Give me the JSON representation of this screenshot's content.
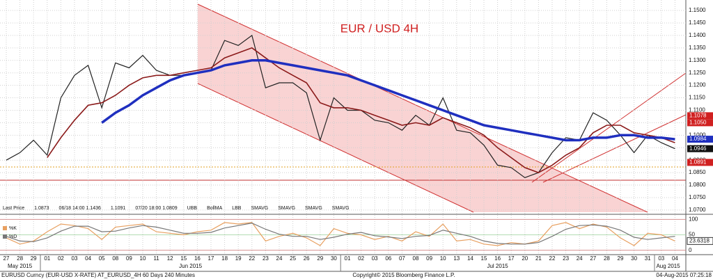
{
  "chart_data": {
    "type": "line",
    "title": "EUR / USD 4H",
    "categories": [
      "27",
      "28",
      "29",
      "01",
      "02",
      "03",
      "04",
      "05",
      "08",
      "09",
      "10",
      "11",
      "12",
      "15",
      "16",
      "17",
      "18",
      "19",
      "22",
      "23",
      "24",
      "25",
      "26",
      "29",
      "30",
      "01",
      "02",
      "03",
      "06",
      "07",
      "08",
      "09",
      "10",
      "13",
      "14",
      "15",
      "16",
      "17",
      "20",
      "21",
      "22",
      "23",
      "24",
      "27",
      "28",
      "29",
      "30",
      "31",
      "03",
      "04"
    ],
    "month_labels": [
      "May 2015",
      "Jun 2015",
      "Jul 2015",
      "Aug 2015"
    ],
    "series": [
      {
        "name": "Last Price",
        "color": "#222222",
        "width": 1.2,
        "values": [
          1.09,
          1.093,
          1.098,
          1.092,
          1.115,
          1.124,
          1.128,
          1.111,
          1.129,
          1.127,
          1.132,
          1.126,
          1.124,
          1.124,
          1.125,
          1.126,
          1.138,
          1.136,
          1.14,
          1.119,
          1.121,
          1.121,
          1.117,
          1.098,
          1.115,
          1.11,
          1.11,
          1.106,
          1.105,
          1.102,
          1.108,
          1.104,
          1.115,
          1.102,
          1.101,
          1.096,
          1.088,
          1.087,
          1.083,
          1.085,
          1.093,
          1.099,
          1.098,
          1.109,
          1.106,
          1.1,
          1.093,
          1.1,
          1.097,
          1.0946
        ]
      },
      {
        "name": "BollMA",
        "color": "#8b1a1a",
        "width": 1.6,
        "values": [
          null,
          null,
          null,
          1.091,
          1.099,
          1.106,
          1.112,
          1.113,
          1.116,
          1.12,
          1.123,
          1.124,
          1.124,
          1.125,
          1.126,
          1.127,
          1.131,
          1.133,
          1.135,
          1.131,
          1.127,
          1.124,
          1.121,
          1.113,
          1.111,
          1.111,
          1.11,
          1.108,
          1.106,
          1.104,
          1.105,
          1.104,
          1.107,
          1.105,
          1.103,
          1.1,
          1.095,
          1.091,
          1.087,
          1.085,
          1.088,
          1.092,
          1.095,
          1.101,
          1.104,
          1.104,
          1.101,
          1.1,
          1.099,
          1.097
        ]
      },
      {
        "name": "SMAVG",
        "color": "#1f2fbf",
        "width": 3.5,
        "values": [
          null,
          null,
          null,
          null,
          null,
          null,
          null,
          1.105,
          1.109,
          1.112,
          1.116,
          1.119,
          1.122,
          1.124,
          1.125,
          1.126,
          1.128,
          1.129,
          1.13,
          1.13,
          1.129,
          1.128,
          1.127,
          1.126,
          1.125,
          1.124,
          1.122,
          1.12,
          1.118,
          1.116,
          1.114,
          1.112,
          1.11,
          1.108,
          1.106,
          1.104,
          1.103,
          1.102,
          1.101,
          1.1,
          1.099,
          1.098,
          1.098,
          1.099,
          1.099,
          1.1,
          1.1,
          1.099,
          1.099,
          1.0984
        ]
      }
    ],
    "ylim": [
      1.0683,
      1.1542
    ],
    "yticks": [
      {
        "value": 1.07,
        "label": "1.0700"
      },
      {
        "value": 1.075,
        "label": "1.0750"
      },
      {
        "value": 1.08,
        "label": "1.0800"
      },
      {
        "value": 1.085,
        "label": "1.0850"
      },
      {
        "value": 1.09,
        "label": "1.0900"
      },
      {
        "value": 1.095,
        "label": "1.0950"
      },
      {
        "value": 1.1,
        "label": "1.1000"
      },
      {
        "value": 1.105,
        "label": "1.1050"
      },
      {
        "value": 1.11,
        "label": "1.1100"
      },
      {
        "value": 1.115,
        "label": "1.1150"
      },
      {
        "value": 1.12,
        "label": "1.1200"
      },
      {
        "value": 1.125,
        "label": "1.1250"
      },
      {
        "value": 1.13,
        "label": "1.1300"
      },
      {
        "value": 1.135,
        "label": "1.1350"
      },
      {
        "value": 1.14,
        "label": "1.1400"
      },
      {
        "value": 1.145,
        "label": "1.1450"
      },
      {
        "value": 1.15,
        "label": "1.1500"
      }
    ],
    "price_tags": [
      {
        "value": 1.1078,
        "color": "#d02020"
      },
      {
        "value": 1.105,
        "label": "1.1050",
        "color": "#d02020"
      },
      {
        "value": 1.0984,
        "color": "#1f2fbf"
      },
      {
        "value": 1.0946,
        "color": "#111111"
      },
      {
        "value": 1.0891,
        "color": "#d02020"
      }
    ],
    "legend": [
      "Last Price",
      "1.0873",
      "06/18 14:00 1.1436",
      "1.1091",
      "07/20 18:00 1.0809",
      "UBB",
      "BollMA",
      "LBB",
      "SMAVG",
      "SMAVG",
      "SMAVG",
      "SMAVG"
    ],
    "oscillator": {
      "series": [
        {
          "name": "%K",
          "color": "#e8a060",
          "values": [
            40,
            20,
            30,
            60,
            85,
            80,
            70,
            35,
            75,
            80,
            85,
            60,
            55,
            50,
            60,
            65,
            90,
            85,
            90,
            30,
            45,
            55,
            40,
            15,
            70,
            55,
            50,
            35,
            45,
            30,
            60,
            45,
            85,
            30,
            35,
            20,
            15,
            25,
            20,
            30,
            80,
            90,
            70,
            85,
            75,
            40,
            15,
            55,
            50,
            30
          ]
        },
        {
          "name": "%D",
          "color": "#777777",
          "values": [
            45,
            30,
            28,
            40,
            62,
            78,
            78,
            60,
            62,
            72,
            80,
            75,
            65,
            55,
            55,
            58,
            72,
            80,
            88,
            68,
            52,
            45,
            45,
            35,
            42,
            52,
            58,
            47,
            43,
            38,
            45,
            48,
            65,
            55,
            45,
            30,
            22,
            20,
            20,
            25,
            45,
            68,
            80,
            82,
            78,
            65,
            42,
            35,
            40,
            45
          ]
        }
      ],
      "ylim": [
        -12,
        112
      ],
      "yticks": [
        0,
        50,
        100
      ],
      "last_label": "23.6318"
    },
    "footer": {
      "left": "EURUSD Curncy (EUR-USD X-RATE) AT_EURUSD_4H 60 Days 240 Minutes",
      "center": "Copyright© 2015 Bloomberg Finance L.P.",
      "right": "04-Aug-2015 07:25:18"
    }
  }
}
